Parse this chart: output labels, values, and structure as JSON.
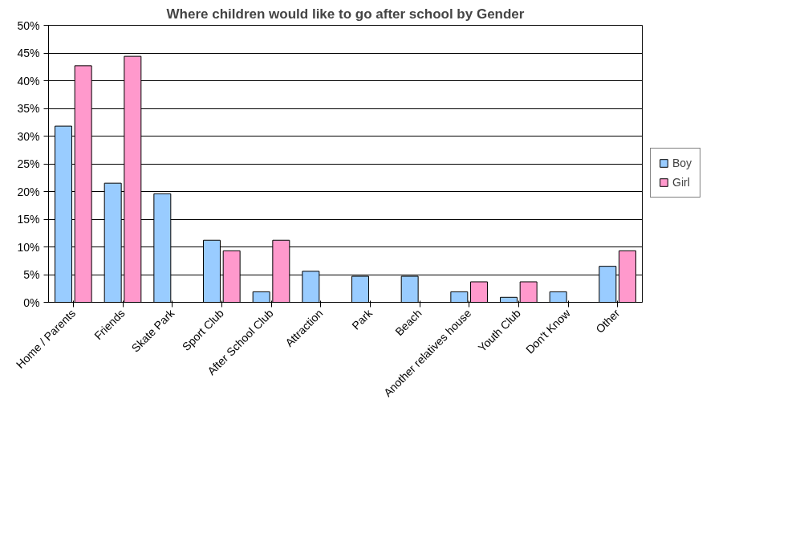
{
  "chart_data": {
    "type": "bar",
    "title": "Where children would like to go after school by Gender",
    "categories": [
      "Home / Parents",
      "Friends",
      "Skate Park",
      "Sport Club",
      "After School Club",
      "Attraction",
      "Park",
      "Beach",
      "Another relatives house",
      "Youth Club",
      "Don't Know",
      "Other"
    ],
    "series": [
      {
        "name": "Boy",
        "color": "#99ccff",
        "values": [
          31.8,
          21.5,
          19.6,
          11.2,
          1.9,
          5.6,
          4.7,
          4.7,
          1.9,
          0.9,
          1.9,
          6.5
        ]
      },
      {
        "name": "Girl",
        "color": "#ff99cc",
        "values": [
          42.7,
          44.4,
          null,
          9.3,
          11.2,
          null,
          null,
          null,
          3.7,
          3.7,
          null,
          9.3
        ]
      }
    ],
    "ylim": [
      0,
      50
    ],
    "yticks": [
      {
        "value": 0,
        "label": "0%"
      },
      {
        "value": 5,
        "label": "5%"
      },
      {
        "value": 10,
        "label": "10%"
      },
      {
        "value": 15,
        "label": "15%"
      },
      {
        "value": 20,
        "label": "20%"
      },
      {
        "value": 25,
        "label": "25%"
      },
      {
        "value": 30,
        "label": "30%"
      },
      {
        "value": 35,
        "label": "35%"
      },
      {
        "value": 40,
        "label": "40%"
      },
      {
        "value": 45,
        "label": "45%"
      },
      {
        "value": 50,
        "label": "50%"
      }
    ],
    "grid": "y",
    "legend": "right"
  }
}
